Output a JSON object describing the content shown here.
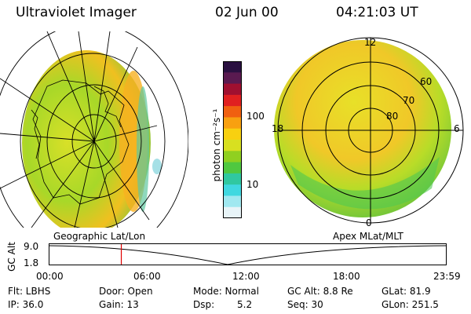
{
  "header": {
    "title": "Ultraviolet Imager",
    "date": "02 Jun 00",
    "time": "04:21:03 UT"
  },
  "left_panel": {
    "caption": "Geographic Lat/Lon"
  },
  "right_panel": {
    "caption": "Apex MLat/MLT",
    "lat_labels": [
      "60",
      "70",
      "80"
    ],
    "mlt_labels": {
      "top": "12",
      "left": "18",
      "right": "6",
      "bottom": "0"
    }
  },
  "colorbar": {
    "unit_label": "photon cm⁻²s⁻¹",
    "ticks": [
      "100",
      "10"
    ],
    "colors": [
      "#2a1040",
      "#5a1a50",
      "#a01030",
      "#e02020",
      "#f06010",
      "#f8a010",
      "#f8d010",
      "#d8e020",
      "#90d020",
      "#50c840",
      "#30c8a0",
      "#40d8e0",
      "#a0e8f0",
      "#e8f4f8"
    ]
  },
  "timeline": {
    "axis_label": "GC Alt",
    "y_ticks": [
      "9.0",
      "1.8"
    ],
    "x_ticks": [
      "00:00",
      "06:00",
      "12:00",
      "18:00",
      "23:59"
    ],
    "marker_time": "04:21",
    "marker_color": "#e00000"
  },
  "info": {
    "flt": "Flt: LBHS",
    "ip": "IP: 36.0",
    "door": "Door: Open",
    "gain": "Gain: 13",
    "mode": "Mode: Normal",
    "dsp": "Dsp:",
    "dsp_val": "5.2",
    "gc_alt": "GC Alt: 8.8 Re",
    "seq": "Seq: 30",
    "glat": "GLat: 81.9",
    "glon": "GLon: 251.5"
  }
}
